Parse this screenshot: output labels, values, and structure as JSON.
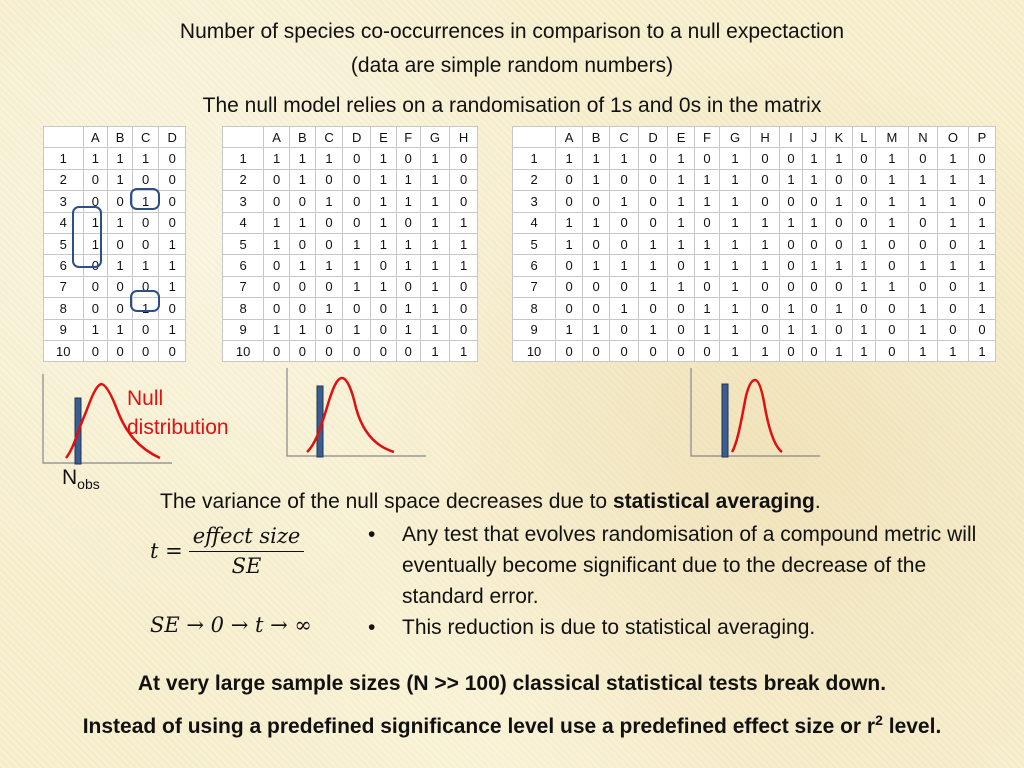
{
  "title_line1": "Number of species co-occurrences in comparison to a null expectaction",
  "title_line2": "(data are simple random numbers)",
  "title_line3": "The null model relies on a randomisation of 1s and 0s in the matrix",
  "matrices": [
    {
      "columns": [
        "",
        "A",
        "B",
        "C",
        "D"
      ],
      "rows": [
        [
          "1",
          "1",
          "1",
          "1",
          "0"
        ],
        [
          "2",
          "0",
          "1",
          "0",
          "0"
        ],
        [
          "3",
          "0",
          "0",
          "1",
          "0"
        ],
        [
          "4",
          "1",
          "1",
          "0",
          "0"
        ],
        [
          "5",
          "1",
          "0",
          "0",
          "1"
        ],
        [
          "6",
          "0",
          "1",
          "1",
          "1"
        ],
        [
          "7",
          "0",
          "0",
          "0",
          "1"
        ],
        [
          "8",
          "0",
          "0",
          "1",
          "0"
        ],
        [
          "9",
          "1",
          "1",
          "0",
          "1"
        ],
        [
          "10",
          "0",
          "0",
          "0",
          "0"
        ]
      ]
    },
    {
      "columns": [
        "",
        "A",
        "B",
        "C",
        "D",
        "E",
        "F",
        "G",
        "H"
      ],
      "rows": [
        [
          "1",
          "1",
          "1",
          "1",
          "0",
          "1",
          "0",
          "1",
          "0"
        ],
        [
          "2",
          "0",
          "1",
          "0",
          "0",
          "1",
          "1",
          "1",
          "0"
        ],
        [
          "3",
          "0",
          "0",
          "1",
          "0",
          "1",
          "1",
          "1",
          "0"
        ],
        [
          "4",
          "1",
          "1",
          "0",
          "0",
          "1",
          "0",
          "1",
          "1"
        ],
        [
          "5",
          "1",
          "0",
          "0",
          "1",
          "1",
          "1",
          "1",
          "1"
        ],
        [
          "6",
          "0",
          "1",
          "1",
          "1",
          "0",
          "1",
          "1",
          "1"
        ],
        [
          "7",
          "0",
          "0",
          "0",
          "1",
          "1",
          "0",
          "1",
          "0"
        ],
        [
          "8",
          "0",
          "0",
          "1",
          "0",
          "0",
          "1",
          "1",
          "0"
        ],
        [
          "9",
          "1",
          "1",
          "0",
          "1",
          "0",
          "1",
          "1",
          "0"
        ],
        [
          "10",
          "0",
          "0",
          "0",
          "0",
          "0",
          "0",
          "1",
          "1"
        ]
      ]
    },
    {
      "columns": [
        "",
        "A",
        "B",
        "C",
        "D",
        "E",
        "F",
        "G",
        "H",
        "I",
        "J",
        "K",
        "L",
        "M",
        "N",
        "O",
        "P"
      ],
      "rows": [
        [
          "1",
          "1",
          "1",
          "1",
          "0",
          "1",
          "0",
          "1",
          "0",
          "0",
          "1",
          "1",
          "0",
          "1",
          "0",
          "1",
          "0"
        ],
        [
          "2",
          "0",
          "1",
          "0",
          "0",
          "1",
          "1",
          "1",
          "0",
          "1",
          "1",
          "0",
          "0",
          "1",
          "1",
          "1",
          "1"
        ],
        [
          "3",
          "0",
          "0",
          "1",
          "0",
          "1",
          "1",
          "1",
          "0",
          "0",
          "0",
          "1",
          "0",
          "1",
          "1",
          "1",
          "0"
        ],
        [
          "4",
          "1",
          "1",
          "0",
          "0",
          "1",
          "0",
          "1",
          "1",
          "1",
          "1",
          "0",
          "0",
          "1",
          "0",
          "1",
          "1"
        ],
        [
          "5",
          "1",
          "0",
          "0",
          "1",
          "1",
          "1",
          "1",
          "1",
          "0",
          "0",
          "0",
          "1",
          "0",
          "0",
          "0",
          "1"
        ],
        [
          "6",
          "0",
          "1",
          "1",
          "1",
          "0",
          "1",
          "1",
          "1",
          "0",
          "1",
          "1",
          "1",
          "0",
          "1",
          "1",
          "1"
        ],
        [
          "7",
          "0",
          "0",
          "0",
          "1",
          "1",
          "0",
          "1",
          "0",
          "0",
          "0",
          "0",
          "1",
          "1",
          "0",
          "0",
          "1"
        ],
        [
          "8",
          "0",
          "0",
          "1",
          "0",
          "0",
          "1",
          "1",
          "0",
          "1",
          "0",
          "1",
          "0",
          "0",
          "1",
          "0",
          "1"
        ],
        [
          "9",
          "1",
          "1",
          "0",
          "1",
          "0",
          "1",
          "1",
          "0",
          "1",
          "1",
          "0",
          "1",
          "0",
          "1",
          "0",
          "0"
        ],
        [
          "10",
          "0",
          "0",
          "0",
          "0",
          "0",
          "0",
          "1",
          "1",
          "0",
          "0",
          "1",
          "1",
          "0",
          "1",
          "1",
          "1"
        ]
      ]
    }
  ],
  "plot_labels": {
    "null_line1": "Null",
    "null_line2": "distribution",
    "nobs_main": "N",
    "nobs_sub": "obs"
  },
  "colors": {
    "curve": "#e01010",
    "observed_bar": "#3b5d8f",
    "highlight": "#2d4f86"
  },
  "variance_text_prefix": "The variance of the null space decreases due to ",
  "variance_text_bold": "statistical averaging",
  "variance_text_suffix": ".",
  "formula": {
    "lhs": "t =",
    "numerator": "effect size",
    "denominator": "SE",
    "limit": "SE → 0 → t → ∞"
  },
  "bullets": [
    "Any test that evolves randomisation of a compound metric will eventually become significant due to the decrease of the standard error.",
    "This reduction is due to statistical averaging."
  ],
  "conclusion1": "At very large sample sizes (N >> 100) classical statistical tests break down.",
  "conclusion2_prefix": "Instead of using a predefined significance level use a predefined effect size or r",
  "conclusion2_sup": "2",
  "conclusion2_suffix": " level."
}
